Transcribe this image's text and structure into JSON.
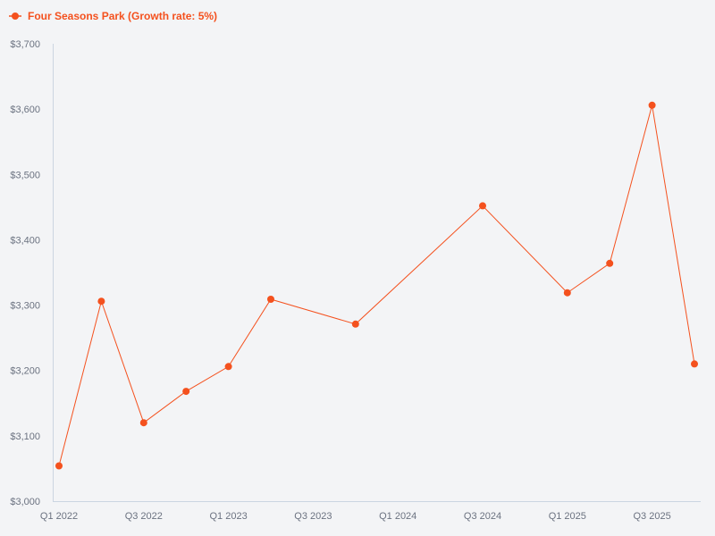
{
  "chart_data": {
    "type": "line",
    "categories": [
      "Q1 2022",
      "Q2 2022",
      "Q3 2022",
      "Q4 2022",
      "Q1 2023",
      "Q2 2023",
      "Q4 2023",
      "Q3 2024",
      "Q1 2025",
      "Q2 2025",
      "Q3 2025",
      "Q4 2025"
    ],
    "x": [
      0,
      1,
      2,
      3,
      4,
      5,
      7,
      10,
      12,
      13,
      14,
      15
    ],
    "x_tick_labels": [
      "Q1 2022",
      "Q3 2022",
      "Q1 2023",
      "Q3 2023",
      "Q1 2024",
      "Q3 2024",
      "Q1 2025",
      "Q3 2025"
    ],
    "x_ticks": [
      0,
      2,
      4,
      6,
      8,
      10,
      12,
      14
    ],
    "series": [
      {
        "name": "Four Seasons Park (Growth rate: 5%)",
        "color": "#f4511e",
        "values": [
          3054,
          3306,
          3120,
          3168,
          3206,
          3309,
          3271,
          3452,
          3319,
          3364,
          3606,
          3210
        ]
      }
    ],
    "y_ticks": [
      3000,
      3100,
      3200,
      3300,
      3400,
      3500,
      3600,
      3700
    ],
    "y_tick_labels": [
      "$3,000",
      "$3,100",
      "$3,200",
      "$3,300",
      "$3,400",
      "$3,500",
      "$3,600",
      "$3,700"
    ],
    "ylim": [
      3000,
      3700
    ],
    "xlim": [
      0,
      15
    ],
    "title": "",
    "xlabel": "",
    "ylabel": "",
    "legend_position": "top-left",
    "grid": false,
    "axis_color": "#cbd5e1",
    "tick_label_color": "#6b7280",
    "background": "#f3f4f6"
  }
}
